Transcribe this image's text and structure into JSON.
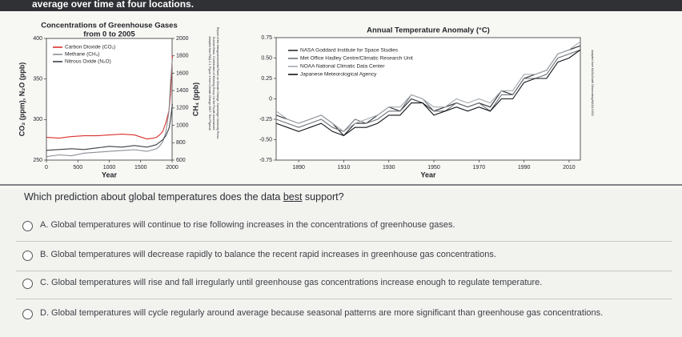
{
  "banner": "average over time at four locations.",
  "chart_data": [
    {
      "type": "line",
      "title": "Concentrations of Greenhouse Gases",
      "subtitle": "from 0 to 2005",
      "xlabel": "Year",
      "ylabel": "CO₂ (ppm), N₂O (ppb)",
      "y2label": "CH₄ (ppb)",
      "x": [
        0,
        200,
        400,
        600,
        800,
        1000,
        1200,
        1400,
        1600,
        1700,
        1750,
        1800,
        1850,
        1900,
        1950,
        1975,
        2005
      ],
      "xlim": [
        0,
        2000
      ],
      "xticks": [
        0,
        500,
        1000,
        1500,
        2000
      ],
      "ylim": [
        250,
        400
      ],
      "yticks": [
        250,
        300,
        350,
        400
      ],
      "y2lim": [
        600,
        2000
      ],
      "y2ticks": [
        600,
        800,
        1000,
        1200,
        1400,
        1600,
        1800,
        2000
      ],
      "legend": "upper left",
      "series": [
        {
          "name": "Carbon Dioxide (CO₂)",
          "color": "#d9302c",
          "values": [
            278,
            277,
            279,
            280,
            280,
            281,
            282,
            281,
            276,
            277,
            278,
            281,
            285,
            296,
            311,
            331,
            379
          ]
        },
        {
          "name": "Methane (CH₄)",
          "color": "#8a8f96",
          "axis": "y2",
          "values": [
            640,
            660,
            650,
            680,
            690,
            700,
            710,
            720,
            700,
            720,
            730,
            760,
            810,
            920,
            1160,
            1500,
            1774
          ]
        },
        {
          "name": "Nitrous Oxide (N₂O)",
          "color": "#3a4046",
          "values": [
            262,
            263,
            264,
            263,
            265,
            267,
            266,
            268,
            266,
            268,
            269,
            272,
            275,
            280,
            289,
            300,
            319
          ]
        }
      ],
      "credit": [
        "Adapted from FAQ 2.1, Figure 1 from Climate Change 2007: The Physical",
        "Science Basis. Contribution of Working Group I to the Fourth Assessment",
        "Report of the Intergovernmental Panel on Climate Change. Cambridge University Press."
      ]
    },
    {
      "type": "line",
      "title": "Annual Temperature Anomaly (°C)",
      "xlabel": "Year",
      "x": [
        1880,
        1885,
        1890,
        1895,
        1900,
        1905,
        1910,
        1915,
        1920,
        1925,
        1930,
        1935,
        1940,
        1945,
        1950,
        1955,
        1960,
        1965,
        1970,
        1975,
        1980,
        1985,
        1990,
        1995,
        2000,
        2005,
        2010,
        2015
      ],
      "xlim": [
        1880,
        2015
      ],
      "xticks": [
        1890,
        1910,
        1930,
        1950,
        1970,
        1990,
        2010
      ],
      "ylim": [
        -0.75,
        0.75
      ],
      "yticks": [
        -0.75,
        {
          "value": -0.5,
          "label": "-0.50"
        },
        -0.25,
        0,
        0.25,
        {
          "value": 0.5,
          "label": "0.50"
        },
        0.75
      ],
      "legend": "upper left",
      "series": [
        {
          "name": "NASA Goddard Institute for Space Studies",
          "color": "#2b2f33",
          "values": [
            -0.2,
            -0.25,
            -0.3,
            -0.25,
            -0.2,
            -0.3,
            -0.45,
            -0.3,
            -0.3,
            -0.2,
            -0.1,
            -0.15,
            0.0,
            -0.05,
            -0.15,
            -0.1,
            -0.05,
            -0.1,
            -0.05,
            -0.1,
            0.1,
            0.05,
            0.25,
            0.3,
            0.35,
            0.55,
            0.6,
            0.65
          ]
        },
        {
          "name": "Met Office Hadley Centre/Climatic Research Unit",
          "color": "#6d7278",
          "values": [
            -0.25,
            -0.3,
            -0.35,
            -0.3,
            -0.25,
            -0.35,
            -0.4,
            -0.25,
            -0.3,
            -0.25,
            -0.15,
            -0.15,
            0.05,
            0.0,
            -0.15,
            -0.15,
            -0.05,
            -0.1,
            -0.05,
            -0.15,
            0.05,
            0.05,
            0.25,
            0.25,
            0.3,
            0.5,
            0.55,
            0.6
          ]
        },
        {
          "name": "NOAA National Climatic Data Center",
          "color": "#a4a9ae",
          "values": [
            -0.15,
            -0.25,
            -0.3,
            -0.25,
            -0.2,
            -0.3,
            -0.4,
            -0.3,
            -0.25,
            -0.2,
            -0.1,
            -0.1,
            0.05,
            0.0,
            -0.1,
            -0.1,
            0.0,
            -0.05,
            0.0,
            -0.05,
            0.1,
            0.1,
            0.3,
            0.3,
            0.35,
            0.55,
            0.6,
            0.7
          ]
        },
        {
          "name": "Japanese Meteorological Agency",
          "color": "#111417",
          "values": [
            -0.3,
            -0.35,
            -0.4,
            -0.35,
            -0.3,
            -0.4,
            -0.45,
            -0.35,
            -0.35,
            -0.3,
            -0.2,
            -0.2,
            -0.05,
            -0.05,
            -0.2,
            -0.15,
            -0.1,
            -0.15,
            -0.1,
            -0.15,
            0.0,
            0.0,
            0.2,
            0.25,
            0.25,
            0.45,
            0.5,
            0.6
          ]
        }
      ],
      "credit": [
        "Adapted from NASA Earth Observatory/NASA GISS"
      ]
    }
  ],
  "question": [
    "Which prediction about global temperatures does the data ",
    "best",
    " support?"
  ],
  "options": [
    "A.  Global temperatures will continue to rise following increases in the concentrations of greenhouse gases.",
    "B.  Global temperatures will decrease rapidly to balance the recent rapid increases in greenhouse gas concentrations.",
    "C.  Global temperatures will rise and fall irregularly until greenhouse gas concentrations increase enough to regulate temperature.",
    "D.  Global temperatures will cycle regularly around average because seasonal patterns are more significant than greenhouse gas concentrations."
  ]
}
